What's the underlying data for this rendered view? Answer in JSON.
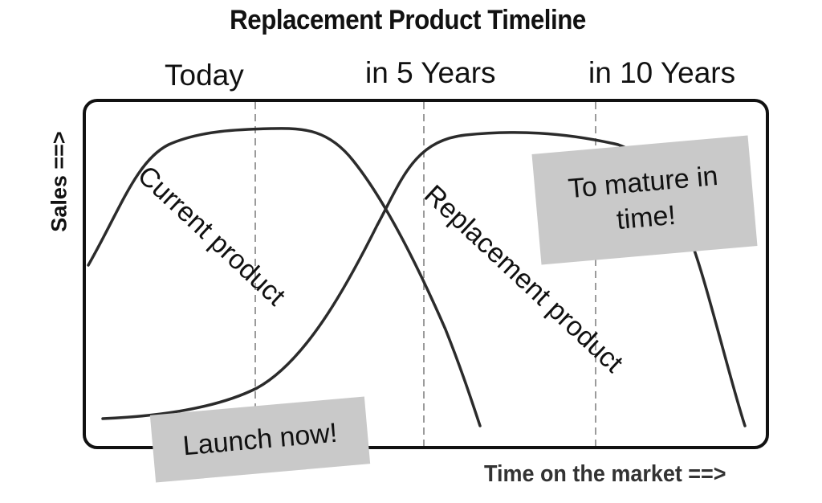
{
  "title": "Replacement Product Timeline",
  "periods": [
    "Today",
    "in 5 Years",
    "in 10 Years"
  ],
  "y_axis_label": "Sales ==>",
  "x_axis_label": "Time on the market ==>",
  "curves": {
    "current": "Current product",
    "replacement": "Replacement product"
  },
  "notes": {
    "mature": "To mature in time!",
    "launch": "Launch now!"
  },
  "colors": {
    "frame": "#111111",
    "curve": "#2b2b2b",
    "divider": "#7a7a7a",
    "note_fill": "#c9c9c9"
  }
}
